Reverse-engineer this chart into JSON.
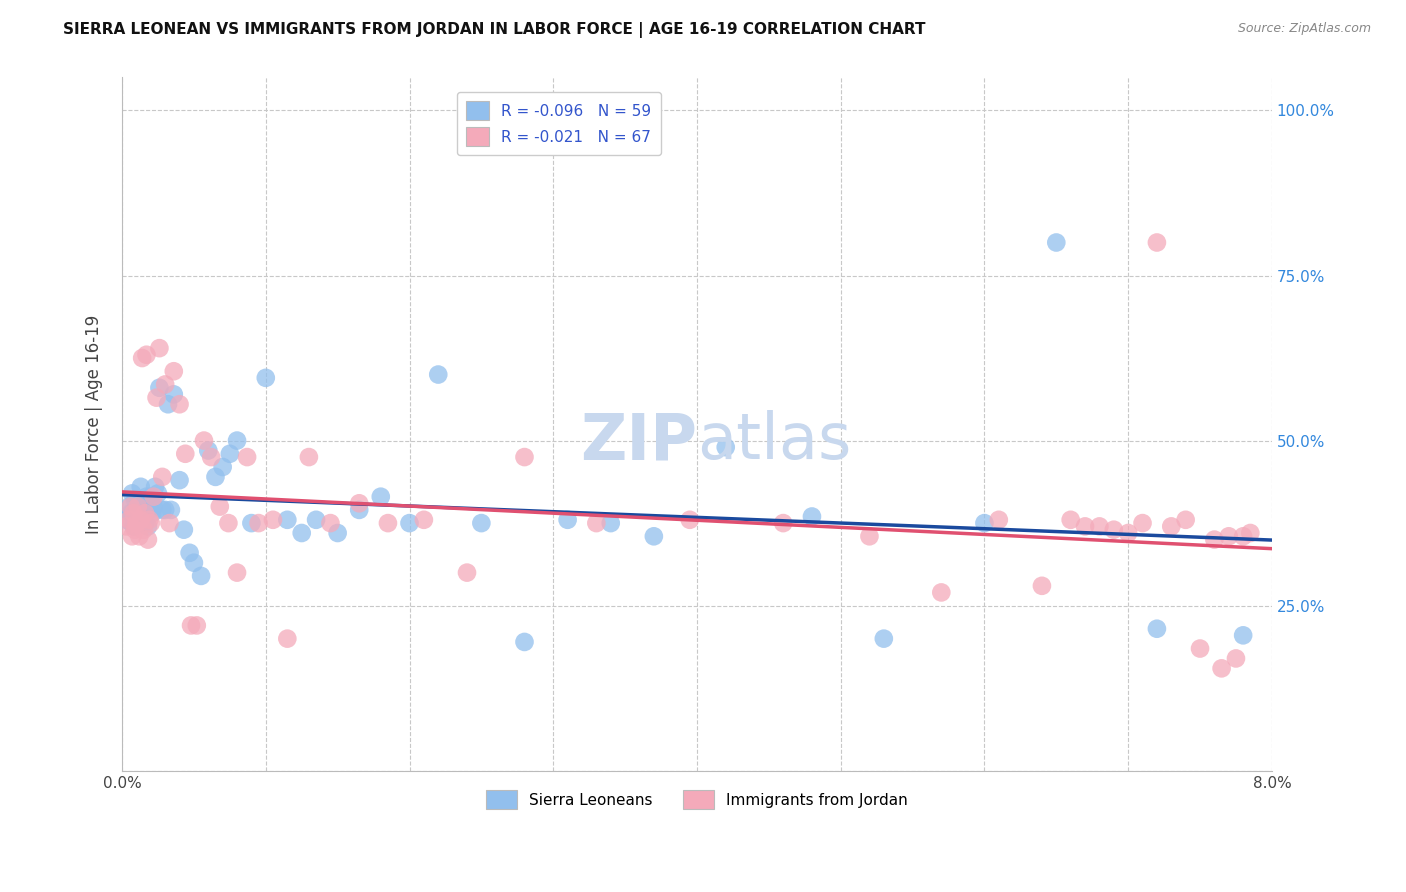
{
  "title": "SIERRA LEONEAN VS IMMIGRANTS FROM JORDAN IN LABOR FORCE | AGE 16-19 CORRELATION CHART",
  "source": "Source: ZipAtlas.com",
  "ylabel": "In Labor Force | Age 16-19",
  "xlim": [
    0.0,
    0.08
  ],
  "ylim": [
    0.0,
    1.05
  ],
  "x_ticks": [
    0.0,
    0.01,
    0.02,
    0.03,
    0.04,
    0.05,
    0.06,
    0.07,
    0.08
  ],
  "y_ticks": [
    0.0,
    0.25,
    0.5,
    0.75,
    1.0
  ],
  "blue_color": "#92BFED",
  "pink_color": "#F4AABA",
  "blue_line_color": "#1A4A9E",
  "pink_line_color": "#E05070",
  "legend_r1": "-0.096",
  "legend_n1": "59",
  "legend_r2": "-0.021",
  "legend_n2": "67",
  "label1": "Sierra Leoneans",
  "label2": "Immigrants from Jordan",
  "blue_x": [
    0.0003,
    0.0005,
    0.0006,
    0.0007,
    0.0008,
    0.0009,
    0.001,
    0.0011,
    0.0012,
    0.0013,
    0.0014,
    0.0015,
    0.0016,
    0.0017,
    0.0018,
    0.0019,
    0.002,
    0.0021,
    0.0022,
    0.0023,
    0.0025,
    0.0026,
    0.0028,
    0.003,
    0.0032,
    0.0034,
    0.0036,
    0.004,
    0.0043,
    0.0047,
    0.005,
    0.0055,
    0.006,
    0.0065,
    0.007,
    0.0075,
    0.008,
    0.009,
    0.01,
    0.0115,
    0.0125,
    0.0135,
    0.015,
    0.0165,
    0.018,
    0.02,
    0.022,
    0.025,
    0.028,
    0.031,
    0.034,
    0.037,
    0.042,
    0.048,
    0.053,
    0.06,
    0.065,
    0.072,
    0.078
  ],
  "blue_y": [
    0.38,
    0.4,
    0.39,
    0.42,
    0.37,
    0.41,
    0.38,
    0.39,
    0.41,
    0.43,
    0.38,
    0.395,
    0.375,
    0.415,
    0.37,
    0.395,
    0.415,
    0.39,
    0.4,
    0.43,
    0.42,
    0.58,
    0.395,
    0.395,
    0.555,
    0.395,
    0.57,
    0.44,
    0.365,
    0.33,
    0.315,
    0.295,
    0.485,
    0.445,
    0.46,
    0.48,
    0.5,
    0.375,
    0.595,
    0.38,
    0.36,
    0.38,
    0.36,
    0.395,
    0.415,
    0.375,
    0.6,
    0.375,
    0.195,
    0.38,
    0.375,
    0.355,
    0.49,
    0.385,
    0.2,
    0.375,
    0.8,
    0.215,
    0.205
  ],
  "pink_x": [
    0.0003,
    0.0005,
    0.0006,
    0.0007,
    0.0008,
    0.0009,
    0.001,
    0.0011,
    0.0012,
    0.0013,
    0.0014,
    0.0015,
    0.0016,
    0.0017,
    0.0018,
    0.0019,
    0.002,
    0.0022,
    0.0024,
    0.0026,
    0.0028,
    0.003,
    0.0033,
    0.0036,
    0.004,
    0.0044,
    0.0048,
    0.0052,
    0.0057,
    0.0062,
    0.0068,
    0.0074,
    0.008,
    0.0087,
    0.0095,
    0.0105,
    0.0115,
    0.013,
    0.0145,
    0.0165,
    0.0185,
    0.021,
    0.024,
    0.028,
    0.033,
    0.0395,
    0.046,
    0.052,
    0.057,
    0.061,
    0.064,
    0.066,
    0.067,
    0.068,
    0.069,
    0.07,
    0.071,
    0.072,
    0.073,
    0.074,
    0.075,
    0.076,
    0.0765,
    0.077,
    0.0775,
    0.078,
    0.0785
  ],
  "pink_y": [
    0.37,
    0.38,
    0.4,
    0.355,
    0.39,
    0.365,
    0.375,
    0.4,
    0.355,
    0.38,
    0.625,
    0.365,
    0.39,
    0.63,
    0.35,
    0.38,
    0.375,
    0.415,
    0.565,
    0.64,
    0.445,
    0.585,
    0.375,
    0.605,
    0.555,
    0.48,
    0.22,
    0.22,
    0.5,
    0.475,
    0.4,
    0.375,
    0.3,
    0.475,
    0.375,
    0.38,
    0.2,
    0.475,
    0.375,
    0.405,
    0.375,
    0.38,
    0.3,
    0.475,
    0.375,
    0.38,
    0.375,
    0.355,
    0.27,
    0.38,
    0.28,
    0.38,
    0.37,
    0.37,
    0.365,
    0.36,
    0.375,
    0.8,
    0.37,
    0.38,
    0.185,
    0.35,
    0.155,
    0.355,
    0.17,
    0.355,
    0.36
  ]
}
